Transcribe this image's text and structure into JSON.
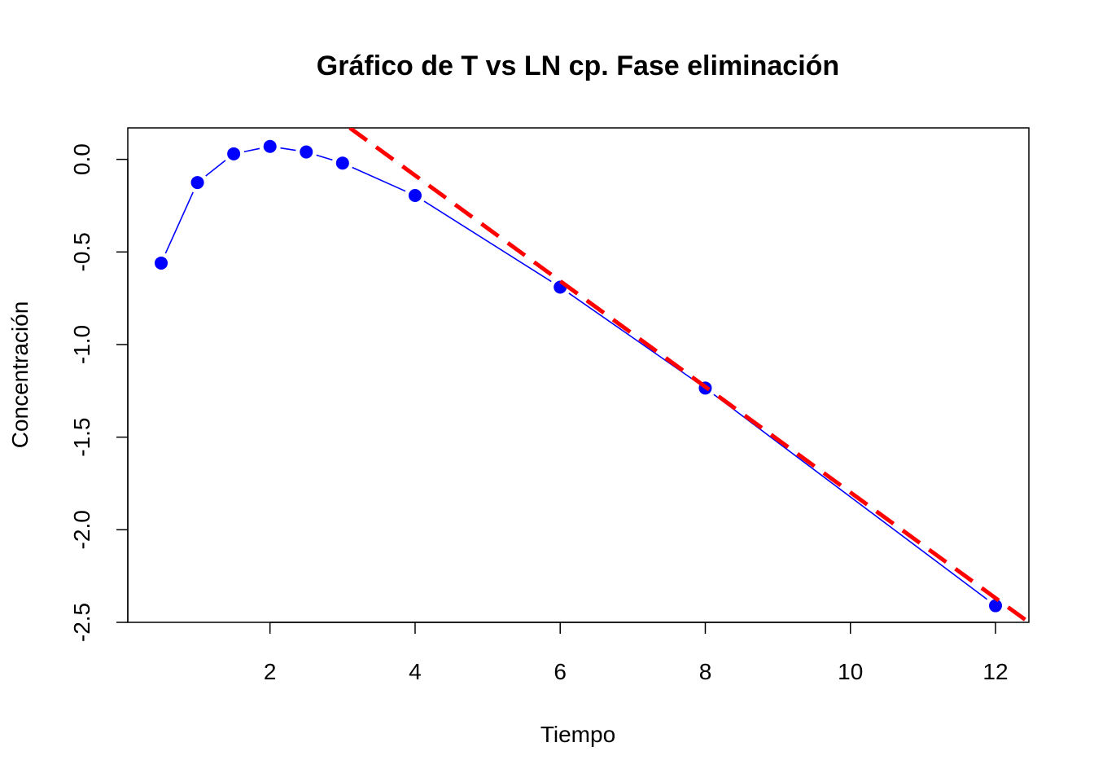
{
  "chart_data": {
    "type": "line",
    "title": "Gráfico de T vs LN cp. Fase eliminación",
    "xlabel": "Tiempo",
    "ylabel": "Concentración",
    "xlim": [
      0.04,
      12.46
    ],
    "ylim": [
      -2.5,
      0.17
    ],
    "x_ticks": [
      2,
      4,
      6,
      8,
      10,
      12
    ],
    "x_tick_labels": [
      "2",
      "4",
      "6",
      "8",
      "10",
      "12"
    ],
    "y_ticks": [
      0.0,
      -0.5,
      -1.0,
      -1.5,
      -2.0,
      -2.5
    ],
    "y_tick_labels": [
      "0.0",
      "-0.5",
      "-1.0",
      "-1.5",
      "-2.0",
      "-2.5"
    ],
    "grid": false,
    "legend": "none",
    "series": [
      {
        "kind": "line+points",
        "color": "#0000ff",
        "x": [
          0.5,
          1,
          1.5,
          2,
          2.5,
          3,
          4,
          6,
          8,
          12
        ],
        "y": [
          -0.56,
          -0.125,
          0.03,
          0.07,
          0.04,
          -0.02,
          -0.195,
          -0.69,
          -1.235,
          -2.41
        ]
      },
      {
        "kind": "regression-line",
        "style": "dashed",
        "color": "#ff0000",
        "x": [
          3.1,
          12.46
        ],
        "y": [
          0.17,
          -2.5
        ]
      }
    ]
  }
}
